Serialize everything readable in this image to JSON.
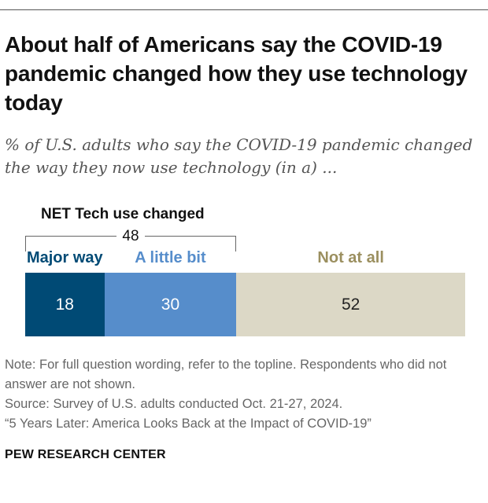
{
  "title": "About half of Americans say the COVID-19 pandemic changed how they use technology today",
  "subtitle": "% of U.S. adults who say the COVID-19 pandemic changed the way they now use technology (in a) ...",
  "chart_data": {
    "type": "bar",
    "orientation": "horizontal-stacked",
    "categories": [
      "Major way",
      "A little bit",
      "Not at all"
    ],
    "values": [
      18,
      30,
      52
    ],
    "colors": [
      "#004a75",
      "#568dcb",
      "#dcd8c6"
    ],
    "label_colors": [
      "#004a75",
      "#568dcb",
      "#9b8f5f"
    ],
    "value_text_colors": [
      "#ffffff",
      "#ffffff",
      "#222222"
    ],
    "net": {
      "label": "NET Tech use changed",
      "value": "48"
    },
    "xlim": [
      0,
      100
    ]
  },
  "note": "Note: For full question wording, refer to the topline. Respondents who did not answer are not shown.",
  "source": "Source: Survey of U.S. adults conducted Oct. 21-27, 2024.",
  "report": "“5 Years Later: America Looks Back at the Impact of COVID-19”",
  "logo": "PEW RESEARCH CENTER"
}
